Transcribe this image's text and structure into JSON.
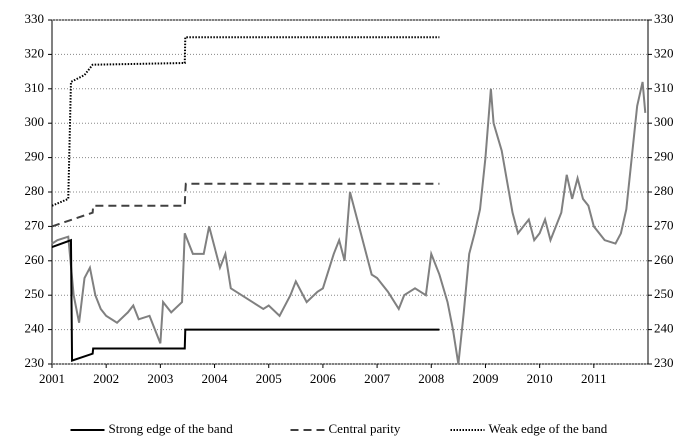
{
  "chart_data": {
    "type": "line",
    "xlim": [
      2001,
      2012
    ],
    "xticks": [
      2001,
      2002,
      2003,
      2004,
      2005,
      2006,
      2007,
      2008,
      2009,
      2010,
      2011
    ],
    "ylim": [
      230,
      330
    ],
    "yticks": [
      230,
      240,
      250,
      260,
      270,
      280,
      290,
      300,
      310,
      320,
      330
    ],
    "y2lim": [
      230,
      330
    ],
    "y2ticks": [
      230,
      240,
      250,
      260,
      270,
      280,
      290,
      300,
      310,
      320,
      330
    ],
    "grid": true,
    "legend": "bottom",
    "series": [
      {
        "color": "#808080",
        "style": "solid",
        "x": [
          2001.0,
          2001.1,
          2001.3,
          2001.4,
          2001.5,
          2001.6,
          2001.7,
          2001.8,
          2001.9,
          2002.0,
          2002.2,
          2002.4,
          2002.5,
          2002.6,
          2002.8,
          2002.9,
          2003.0,
          2003.05,
          2003.2,
          2003.4,
          2003.45,
          2003.6,
          2003.8,
          2003.9,
          2004.0,
          2004.1,
          2004.2,
          2004.3,
          2004.5,
          2004.7,
          2004.9,
          2005.0,
          2005.2,
          2005.4,
          2005.5,
          2005.7,
          2005.9,
          2006.0,
          2006.2,
          2006.3,
          2006.4,
          2006.5,
          2006.6,
          2006.7,
          2006.9,
          2007.0,
          2007.2,
          2007.4,
          2007.5,
          2007.7,
          2007.9,
          2008.0,
          2008.15,
          2008.3,
          2008.4,
          2008.5,
          2008.6,
          2008.7,
          2008.8,
          2008.9,
          2009.0,
          2009.1,
          2009.15,
          2009.3,
          2009.4,
          2009.5,
          2009.6,
          2009.7,
          2009.8,
          2009.9,
          2010.0,
          2010.1,
          2010.2,
          2010.4,
          2010.5,
          2010.6,
          2010.7,
          2010.8,
          2010.9,
          2011.0,
          2011.2,
          2011.4,
          2011.5,
          2011.6,
          2011.7,
          2011.8,
          2011.9,
          2011.95
        ],
        "values": [
          265,
          266,
          267,
          250,
          242,
          255,
          258,
          250,
          246,
          244,
          242,
          245,
          247,
          243,
          244,
          240,
          236,
          248,
          245,
          248,
          268,
          262,
          262,
          270,
          264,
          258,
          262,
          252,
          250,
          248,
          246,
          247,
          244,
          250,
          254,
          248,
          251,
          252,
          262,
          266,
          260,
          280,
          274,
          268,
          256,
          255,
          251,
          246,
          250,
          252,
          250,
          262,
          256,
          248,
          240,
          230,
          245,
          262,
          268,
          275,
          290,
          310,
          300,
          292,
          283,
          274,
          268,
          270,
          272,
          266,
          268,
          272,
          266,
          274,
          285,
          278,
          284,
          278,
          276,
          270,
          266,
          265,
          268,
          275,
          290,
          305,
          312,
          303
        ]
      },
      {
        "name": "Strong edge of the band",
        "color": "#000000",
        "style": "solid",
        "x": [
          2001.0,
          2001.35,
          2001.37,
          2001.75,
          2001.76,
          2003.45,
          2003.46,
          2008.15
        ],
        "values": [
          264,
          266,
          231,
          233,
          234.5,
          234.5,
          240,
          240
        ]
      },
      {
        "name": "Central parity",
        "color": "#404040",
        "style": "dashed",
        "x": [
          2001.0,
          2001.75,
          2001.76,
          2003.45,
          2003.46,
          2003.47,
          2008.15
        ],
        "values": [
          270,
          274,
          276,
          276,
          280,
          282.4,
          282.4
        ]
      },
      {
        "name": "Weak edge of the band",
        "color": "#000000",
        "style": "dotted",
        "x": [
          2001.0,
          2001.3,
          2001.35,
          2001.6,
          2001.75,
          2003.45,
          2003.46,
          2008.15
        ],
        "values": [
          276,
          278,
          312,
          314,
          317,
          317.5,
          325,
          325
        ]
      }
    ]
  }
}
